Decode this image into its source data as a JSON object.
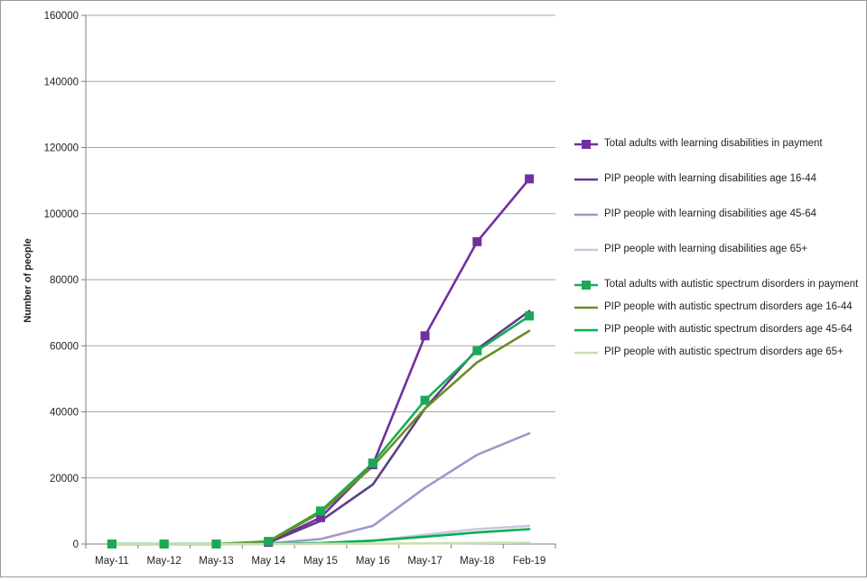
{
  "chart_data": {
    "type": "line",
    "title": "",
    "xlabel": "",
    "ylabel": "Number of people",
    "ylim": [
      0,
      160000
    ],
    "yticks": [
      "0",
      "20000",
      "40000",
      "60000",
      "80000",
      "100000",
      "120000",
      "140000",
      "160000"
    ],
    "grid": true,
    "legend_position": "right",
    "categories": [
      "May-11",
      "May-12",
      "May-13",
      "May 14",
      "May 15",
      "May 16",
      "May-17",
      "May-18",
      "Feb-19"
    ],
    "series": [
      {
        "name": "Total adults with learning disabilities in payment",
        "color": "#7030a0",
        "marker": "square",
        "values": [
          0,
          0,
          0,
          500,
          8000,
          24000,
          63000,
          91500,
          110500
        ]
      },
      {
        "name": "PIP people with learning disabilities age 16-44",
        "color": "#5c3f86",
        "marker": "none",
        "values": [
          0,
          0,
          0,
          400,
          7000,
          18000,
          41000,
          59000,
          70500
        ]
      },
      {
        "name": "PIP people with learning disabilities age 45-64",
        "color": "#a595c8",
        "marker": "none",
        "values": [
          0,
          0,
          0,
          200,
          1500,
          5500,
          17000,
          27000,
          33500
        ]
      },
      {
        "name": "PIP people with learning disabilities age 65+",
        "color": "#cdc3df",
        "marker": "none",
        "values": [
          0,
          0,
          0,
          50,
          300,
          1000,
          2800,
          4500,
          5500
        ]
      },
      {
        "name": "Total adults with autistic spectrum disorders in payment",
        "color": "#1aaa55",
        "marker": "square",
        "values": [
          0,
          0,
          0,
          800,
          10000,
          24500,
          43500,
          58500,
          69000
        ]
      },
      {
        "name": "PIP people with autistic spectrum disorders age 16-44",
        "color": "#6b8e23",
        "marker": "none",
        "values": [
          0,
          0,
          0,
          700,
          9500,
          23500,
          41000,
          55000,
          64500
        ]
      },
      {
        "name": "PIP people with autistic spectrum disorders age 45-64",
        "color": "#00b050",
        "marker": "none",
        "values": [
          0,
          0,
          0,
          50,
          300,
          1000,
          2200,
          3500,
          4500
        ]
      },
      {
        "name": "PIP people with autistic spectrum disorders age 65+",
        "color": "#c8e0b0",
        "marker": "none",
        "values": [
          0,
          0,
          0,
          10,
          50,
          100,
          200,
          300,
          400
        ]
      }
    ]
  }
}
